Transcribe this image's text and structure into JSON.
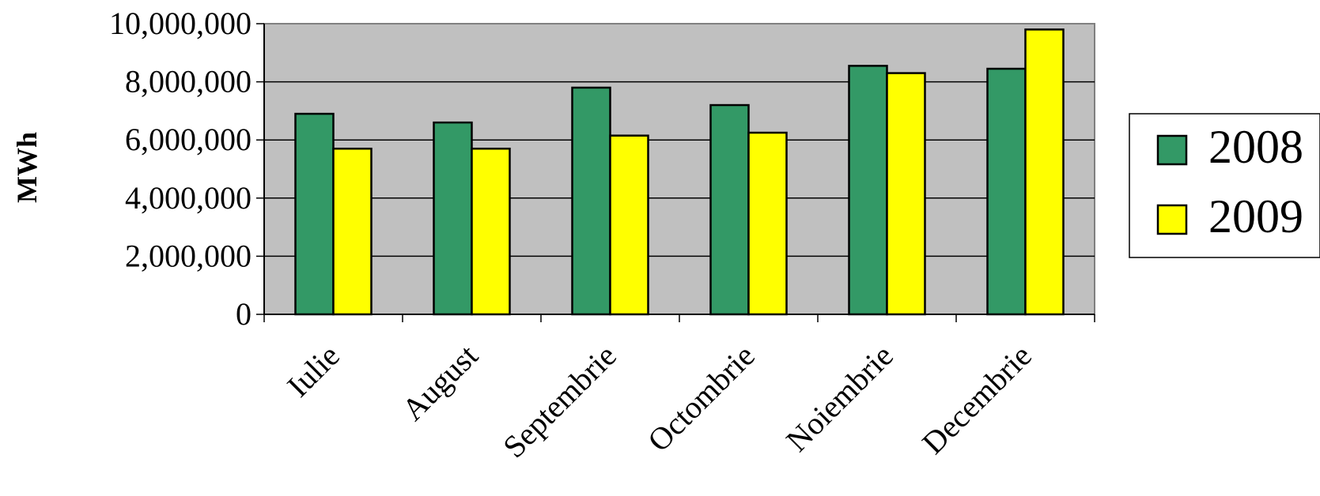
{
  "chart_data": {
    "type": "bar",
    "title": "",
    "xlabel": "",
    "ylabel": "MWh",
    "categories": [
      "Iulie",
      "August",
      "Septembrie",
      "Octombrie",
      "Noiembrie",
      "Decembrie"
    ],
    "series": [
      {
        "name": "2008",
        "color": "#339966",
        "values": [
          6900000,
          6600000,
          7800000,
          7200000,
          8550000,
          8450000
        ]
      },
      {
        "name": "2009",
        "color": "#FFFF00",
        "values": [
          5700000,
          5700000,
          6150000,
          6250000,
          8300000,
          9800000
        ]
      }
    ],
    "ylim": [
      0,
      10000000
    ],
    "yticks": [
      "0",
      "2,000,000",
      "4,000,000",
      "6,000,000",
      "8,000,000",
      "10,000,000"
    ],
    "ytick_values": [
      0,
      2000000,
      4000000,
      6000000,
      8000000,
      10000000
    ],
    "grid": "horizontal",
    "plot_background": "#C0C0C0",
    "legend_position": "right"
  }
}
